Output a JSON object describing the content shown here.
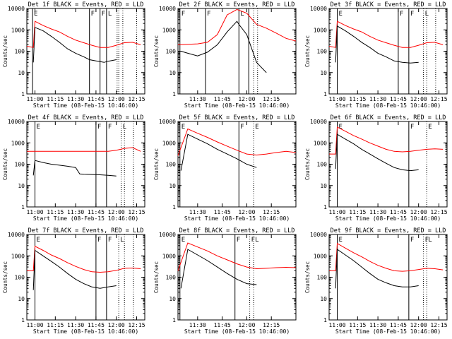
{
  "chart_data": [
    {
      "type": "line",
      "title": "Det 1f BLACK = Events, RED = LLD",
      "xlabel": "Start Time (08-Feb-15 10:46:00)",
      "ylabel": "Counts/sec",
      "scale": "log",
      "ylim": [
        1,
        10000
      ],
      "xlim": [
        10.9,
        12.35
      ],
      "x_ticks": [
        "11:00",
        "11:15",
        "11:30",
        "11:45",
        "12:00",
        "12:15"
      ],
      "y_ticks": [
        "1",
        "10",
        "100",
        "1000",
        "10000"
      ],
      "markers": {
        "solid": [
          10.97,
          11.67,
          11.8,
          11.88
        ],
        "dotted": [
          12.01,
          12.03,
          12.08,
          12.25
        ],
        "letters": [
          "E",
          "F",
          "F",
          "L"
        ]
      },
      "series": [
        {
          "name": "Events",
          "color": "#000000",
          "x": [
            10.98,
            11.0,
            11.1,
            11.2,
            11.3,
            11.4,
            11.5,
            11.6,
            11.67,
            11.75,
            11.85,
            11.9,
            12.0
          ],
          "y": [
            30,
            1300,
            900,
            500,
            260,
            130,
            80,
            55,
            40,
            35,
            30,
            34,
            40
          ]
        },
        {
          "name": "LLD",
          "color": "#ff0000",
          "x": [
            10.9,
            10.98,
            11.0,
            11.1,
            11.2,
            11.3,
            11.4,
            11.5,
            11.6,
            11.7,
            11.8,
            11.9,
            12.0,
            12.1,
            12.2,
            12.3
          ],
          "y": [
            170,
            150,
            2500,
            1600,
            1100,
            800,
            500,
            330,
            250,
            190,
            150,
            150,
            190,
            250,
            260,
            200
          ]
        }
      ]
    },
    {
      "type": "line",
      "title": "Det 2f BLACK = Events, RED = LLD",
      "xlabel": "Start Time (08-Feb-15 10:46:00)",
      "ylabel": "Counts/sec",
      "scale": "log",
      "ylim": [
        1,
        10000
      ],
      "xlim": [
        11.3,
        12.5
      ],
      "x_ticks": [
        "11:30",
        "11:45",
        "12:00",
        "12:15"
      ],
      "y_ticks": [
        "1",
        "10",
        "100",
        "1000",
        "10000"
      ],
      "markers": {
        "solid": [
          11.32,
          11.58,
          11.92,
          12.02
        ],
        "dotted": [
          12.07,
          12.11
        ],
        "letters": [
          "F",
          "F",
          "L"
        ]
      },
      "series": [
        {
          "name": "Events",
          "color": "#000000",
          "x": [
            11.33,
            11.4,
            11.5,
            11.6,
            11.7,
            11.8,
            11.9,
            11.92,
            12.0,
            12.1,
            12.2
          ],
          "y": [
            100,
            80,
            60,
            90,
            200,
            800,
            2500,
            1800,
            600,
            30,
            10
          ]
        },
        {
          "name": "LLD",
          "color": "#ff0000",
          "x": [
            11.3,
            11.4,
            11.5,
            11.6,
            11.7,
            11.8,
            11.9,
            12.0,
            12.1,
            12.2,
            12.3,
            12.4,
            12.5
          ],
          "y": [
            200,
            210,
            220,
            260,
            600,
            5000,
            9000,
            6000,
            1800,
            1200,
            700,
            400,
            300
          ]
        }
      ]
    },
    {
      "type": "line",
      "title": "Det 3f BLACK = Events, RED = LLD",
      "xlabel": "Start Time (08-Feb-15 10:46:00)",
      "ylabel": "Counts/sec",
      "scale": "log",
      "ylim": [
        1,
        10000
      ],
      "xlim": [
        10.9,
        12.35
      ],
      "x_ticks": [
        "11:00",
        "11:15",
        "11:30",
        "11:45",
        "12:00",
        "12:15"
      ],
      "y_ticks": [
        "1",
        "10",
        "100",
        "1000",
        "10000"
      ],
      "markers": {
        "solid": [
          11.0,
          11.75,
          11.88
        ],
        "dotted": [
          12.06,
          12.1,
          12.21
        ],
        "letters": [
          "E",
          "F",
          "F",
          "L"
        ]
      },
      "series": [
        {
          "name": "Events",
          "color": "#000000",
          "x": [
            10.98,
            11.0,
            11.1,
            11.2,
            11.3,
            11.4,
            11.5,
            11.6,
            11.7,
            11.8,
            11.9,
            12.0
          ],
          "y": [
            30,
            1500,
            900,
            500,
            260,
            150,
            80,
            55,
            35,
            30,
            28,
            30
          ]
        },
        {
          "name": "LLD",
          "color": "#ff0000",
          "x": [
            10.9,
            10.98,
            11.0,
            11.1,
            11.2,
            11.3,
            11.4,
            11.5,
            11.6,
            11.7,
            11.8,
            11.9,
            12.0,
            12.1,
            12.2,
            12.3
          ],
          "y": [
            170,
            150,
            2500,
            1600,
            1100,
            800,
            500,
            330,
            250,
            190,
            150,
            150,
            190,
            250,
            260,
            200
          ]
        }
      ]
    },
    {
      "type": "line",
      "title": "Det 4f BLACK = Events, RED = LLD",
      "xlabel": "Start Time (08-Feb-15 10:46:00)",
      "ylabel": "Counts/sec",
      "scale": "log",
      "ylim": [
        1,
        10000
      ],
      "xlim": [
        10.9,
        12.35
      ],
      "x_ticks": [
        "11:00",
        "11:15",
        "11:30",
        "11:45",
        "12:00",
        "12:15"
      ],
      "y_ticks": [
        "1",
        "10",
        "100",
        "1000",
        "10000"
      ],
      "markers": {
        "solid": [
          11.0,
          11.75,
          11.88
        ],
        "dotted": [
          12.06,
          12.1,
          12.21
        ],
        "letters": [
          "E",
          "F",
          "F",
          "L"
        ]
      },
      "series": [
        {
          "name": "Events",
          "color": "#000000",
          "x": [
            10.98,
            11.0,
            11.1,
            11.2,
            11.3,
            11.4,
            11.5,
            11.55,
            11.6,
            11.7,
            11.8,
            11.9,
            12.0
          ],
          "y": [
            30,
            150,
            120,
            100,
            90,
            80,
            70,
            35,
            34,
            33,
            32,
            30,
            28
          ]
        },
        {
          "name": "LLD",
          "color": "#ff0000",
          "x": [
            10.9,
            10.98,
            11.0,
            11.1,
            11.2,
            11.3,
            11.4,
            11.5,
            11.6,
            11.7,
            11.8,
            11.9,
            12.0,
            12.1,
            12.2,
            12.3
          ],
          "y": [
            400,
            400,
            400,
            400,
            400,
            400,
            400,
            400,
            400,
            400,
            400,
            400,
            450,
            550,
            600,
            400
          ]
        }
      ]
    },
    {
      "type": "line",
      "title": "Det 5f BLACK = Events, RED = LLD",
      "xlabel": "Start Time (08-Feb-15 10:46:00)",
      "ylabel": "Counts/sec",
      "scale": "log",
      "ylim": [
        1,
        10000
      ],
      "xlim": [
        11.3,
        12.5
      ],
      "x_ticks": [
        "11:30",
        "11:45",
        "12:00",
        "12:15"
      ],
      "y_ticks": [
        "1",
        "10",
        "100",
        "1000",
        "10000"
      ],
      "markers": {
        "solid": [
          11.32,
          11.92
        ],
        "dotted": [
          12.07
        ],
        "letters": [
          "E",
          "F",
          "F",
          "L"
        ]
      },
      "series": [
        {
          "name": "Events",
          "color": "#000000",
          "x": [
            11.33,
            11.4,
            11.5,
            11.6,
            11.7,
            11.8,
            11.9,
            12.0,
            12.1
          ],
          "y": [
            50,
            2500,
            1500,
            900,
            500,
            300,
            180,
            100,
            70
          ]
        },
        {
          "name": "LLD",
          "color": "#ff0000",
          "x": [
            11.3,
            11.4,
            11.5,
            11.6,
            11.7,
            11.8,
            11.9,
            12.0,
            12.1,
            12.2,
            12.3,
            12.4,
            12.5
          ],
          "y": [
            250,
            4500,
            2800,
            1800,
            1100,
            700,
            450,
            300,
            270,
            300,
            350,
            400,
            350
          ]
        }
      ]
    },
    {
      "type": "line",
      "title": "Det 6f BLACK = Events, RED = LLD",
      "xlabel": "Start Time (08-Feb-15 10:46:00)",
      "ylabel": "Counts/sec",
      "scale": "log",
      "ylim": [
        1,
        10000
      ],
      "xlim": [
        10.9,
        12.35
      ],
      "x_ticks": [
        "11:00",
        "11:15",
        "11:30",
        "11:45",
        "12:00",
        "12:15"
      ],
      "y_ticks": [
        "1",
        "10",
        "100",
        "1000",
        "10000"
      ],
      "markers": {
        "solid": [
          11.0,
          11.88
        ],
        "dotted": [
          12.1
        ],
        "letters": [
          "E",
          "F",
          "F",
          "L"
        ]
      },
      "series": [
        {
          "name": "Events",
          "color": "#000000",
          "x": [
            10.98,
            11.0,
            11.1,
            11.2,
            11.3,
            11.4,
            11.5,
            11.6,
            11.7,
            11.8,
            11.9,
            12.0
          ],
          "y": [
            60,
            2500,
            1500,
            900,
            500,
            300,
            180,
            110,
            70,
            55,
            50,
            55
          ]
        },
        {
          "name": "LLD",
          "color": "#ff0000",
          "x": [
            10.9,
            10.98,
            11.0,
            11.1,
            11.2,
            11.3,
            11.4,
            11.5,
            11.6,
            11.7,
            11.8,
            11.9,
            12.0,
            12.1,
            12.2,
            12.3
          ],
          "y": [
            300,
            300,
            5500,
            3500,
            2200,
            1500,
            1000,
            700,
            500,
            400,
            380,
            400,
            450,
            500,
            520,
            500
          ]
        }
      ]
    },
    {
      "type": "line",
      "title": "Det 7f BLACK = Events, RED = LLD",
      "xlabel": "Start Time (08-Feb-15 10:46:00)",
      "ylabel": "Counts/sec",
      "scale": "log",
      "ylim": [
        1,
        10000
      ],
      "xlim": [
        10.9,
        12.35
      ],
      "x_ticks": [
        "11:00",
        "11:15",
        "11:30",
        "11:45",
        "12:00",
        "12:15"
      ],
      "y_ticks": [
        "1",
        "10",
        "100",
        "1000",
        "10000"
      ],
      "markers": {
        "solid": [
          11.0,
          11.75,
          11.88
        ],
        "dotted": [
          12.03,
          12.1,
          12.21
        ],
        "letters": [
          "E",
          "F",
          "F",
          "L"
        ]
      },
      "series": [
        {
          "name": "Events",
          "color": "#000000",
          "x": [
            10.98,
            11.0,
            11.1,
            11.2,
            11.3,
            11.4,
            11.5,
            11.6,
            11.7,
            11.8,
            11.9,
            12.0
          ],
          "y": [
            25,
            1800,
            1000,
            550,
            300,
            150,
            80,
            50,
            35,
            30,
            35,
            40
          ]
        },
        {
          "name": "LLD",
          "color": "#ff0000",
          "x": [
            10.9,
            10.98,
            11.0,
            11.1,
            11.2,
            11.3,
            11.4,
            11.5,
            11.6,
            11.7,
            11.8,
            11.9,
            12.0,
            12.1,
            12.2,
            12.3
          ],
          "y": [
            200,
            200,
            2800,
            1800,
            1100,
            750,
            480,
            320,
            230,
            180,
            170,
            180,
            210,
            260,
            270,
            250
          ]
        }
      ]
    },
    {
      "type": "line",
      "title": "Det 8f BLACK = Events, RED = LLD",
      "xlabel": "Start Time (08-Feb-15 10:46:00)",
      "ylabel": "Counts/sec",
      "scale": "log",
      "ylim": [
        1,
        10000
      ],
      "xlim": [
        11.3,
        12.5
      ],
      "x_ticks": [
        "11:30",
        "11:45",
        "12:00",
        "12:15"
      ],
      "y_ticks": [
        "1",
        "10",
        "100",
        "1000",
        "10000"
      ],
      "markers": {
        "solid": [
          11.32,
          11.88
        ],
        "dotted": [
          12.03,
          12.07
        ],
        "letters": [
          "E",
          "F",
          "F",
          "L"
        ]
      },
      "series": [
        {
          "name": "Events",
          "color": "#000000",
          "x": [
            11.33,
            11.4,
            11.5,
            11.6,
            11.7,
            11.8,
            11.9,
            12.0,
            12.1
          ],
          "y": [
            30,
            2000,
            1100,
            600,
            300,
            150,
            80,
            50,
            45
          ]
        },
        {
          "name": "LLD",
          "color": "#ff0000",
          "x": [
            11.3,
            11.4,
            11.5,
            11.6,
            11.7,
            11.8,
            11.9,
            12.0,
            12.1,
            12.2,
            12.3,
            12.4,
            12.5
          ],
          "y": [
            200,
            4000,
            2600,
            1700,
            1000,
            650,
            420,
            300,
            250,
            260,
            280,
            290,
            280
          ]
        }
      ]
    },
    {
      "type": "line",
      "title": "Det 9f BLACK = Events, RED = LLD",
      "xlabel": "Start Time (08-Feb-15 10:46:00)",
      "ylabel": "Counts/sec",
      "scale": "log",
      "ylim": [
        1,
        10000
      ],
      "xlim": [
        10.9,
        12.35
      ],
      "x_ticks": [
        "11:00",
        "11:15",
        "11:30",
        "11:45",
        "12:00",
        "12:15"
      ],
      "y_ticks": [
        "1",
        "10",
        "100",
        "1000",
        "10000"
      ],
      "markers": {
        "solid": [
          11.0,
          11.88
        ],
        "dotted": [
          12.06,
          12.1
        ],
        "letters": [
          "E",
          "F",
          "F",
          "L"
        ]
      },
      "series": [
        {
          "name": "Events",
          "color": "#000000",
          "x": [
            10.98,
            11.0,
            11.1,
            11.2,
            11.3,
            11.4,
            11.5,
            11.6,
            11.7,
            11.8,
            11.9,
            12.0
          ],
          "y": [
            30,
            2000,
            1100,
            600,
            300,
            150,
            80,
            55,
            40,
            35,
            35,
            40
          ]
        },
        {
          "name": "LLD",
          "color": "#ff0000",
          "x": [
            10.9,
            10.98,
            11.0,
            11.1,
            11.2,
            11.3,
            11.4,
            11.5,
            11.6,
            11.7,
            11.8,
            11.9,
            12.0,
            12.1,
            12.2,
            12.3
          ],
          "y": [
            200,
            200,
            3800,
            2300,
            1400,
            900,
            550,
            360,
            260,
            200,
            190,
            200,
            230,
            260,
            250,
            220
          ]
        }
      ]
    }
  ]
}
